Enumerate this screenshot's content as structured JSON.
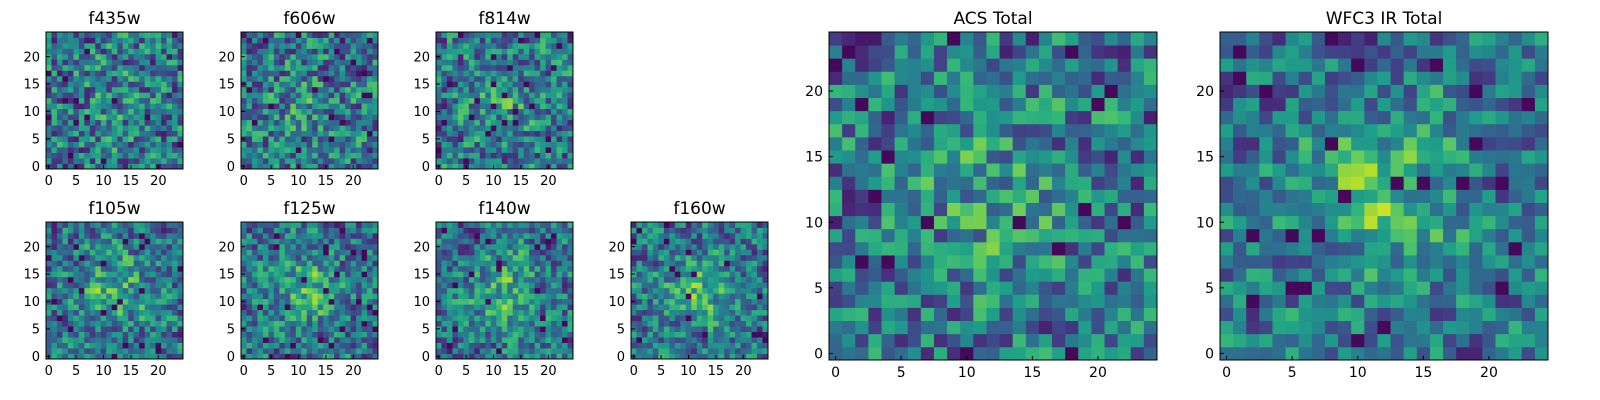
{
  "chart_data": [
    {
      "type": "heatmap",
      "title": "f435w",
      "xticks": [
        "0",
        "5",
        "10",
        "15",
        "20"
      ],
      "yticks": [
        "0",
        "5",
        "10",
        "15",
        "20"
      ],
      "xlim": [
        0,
        24
      ],
      "ylim": [
        0,
        24
      ],
      "grid": false,
      "colormap": "viridis",
      "seed": 1,
      "blob": 0.2
    },
    {
      "type": "heatmap",
      "title": "f606w",
      "xticks": [
        "0",
        "5",
        "10",
        "15",
        "20"
      ],
      "yticks": [
        "0",
        "5",
        "10",
        "15",
        "20"
      ],
      "xlim": [
        0,
        24
      ],
      "ylim": [
        0,
        24
      ],
      "grid": false,
      "colormap": "viridis",
      "seed": 2,
      "blob": 0.3
    },
    {
      "type": "heatmap",
      "title": "f814w",
      "xticks": [
        "0",
        "5",
        "10",
        "15",
        "20"
      ],
      "yticks": [
        "0",
        "5",
        "10",
        "15",
        "20"
      ],
      "xlim": [
        0,
        24
      ],
      "ylim": [
        0,
        24
      ],
      "grid": false,
      "colormap": "viridis",
      "seed": 3,
      "blob": 0.35
    },
    {
      "type": "heatmap",
      "title": "f105w",
      "xticks": [
        "0",
        "5",
        "10",
        "15",
        "20"
      ],
      "yticks": [
        "0",
        "5",
        "10",
        "15",
        "20"
      ],
      "xlim": [
        0,
        24
      ],
      "ylim": [
        0,
        24
      ],
      "grid": false,
      "colormap": "viridis",
      "seed": 4,
      "blob": 0.55
    },
    {
      "type": "heatmap",
      "title": "f125w",
      "xticks": [
        "0",
        "5",
        "10",
        "15",
        "20"
      ],
      "yticks": [
        "0",
        "5",
        "10",
        "15",
        "20"
      ],
      "xlim": [
        0,
        24
      ],
      "ylim": [
        0,
        24
      ],
      "grid": false,
      "colormap": "viridis",
      "seed": 5,
      "blob": 0.55
    },
    {
      "type": "heatmap",
      "title": "f140w",
      "xticks": [
        "0",
        "5",
        "10",
        "15",
        "20"
      ],
      "yticks": [
        "0",
        "5",
        "10",
        "15",
        "20"
      ],
      "xlim": [
        0,
        24
      ],
      "ylim": [
        0,
        24
      ],
      "grid": false,
      "colormap": "viridis",
      "seed": 6,
      "blob": 0.55
    },
    {
      "type": "heatmap",
      "title": "f160w",
      "xticks": [
        "0",
        "5",
        "10",
        "15",
        "20"
      ],
      "yticks": [
        "0",
        "5",
        "10",
        "15",
        "20"
      ],
      "xlim": [
        0,
        24
      ],
      "ylim": [
        0,
        24
      ],
      "grid": false,
      "colormap": "viridis",
      "seed": 7,
      "blob": 0.6
    },
    {
      "type": "heatmap",
      "title": "ACS Total",
      "xticks": [
        "0",
        "5",
        "10",
        "15",
        "20"
      ],
      "yticks": [
        "0",
        "5",
        "10",
        "15",
        "20"
      ],
      "xlim": [
        0,
        24
      ],
      "ylim": [
        0,
        24
      ],
      "grid": false,
      "colormap": "viridis",
      "seed": 8,
      "blob": 0.35
    },
    {
      "type": "heatmap",
      "title": "WFC3 IR Total",
      "xticks": [
        "0",
        "5",
        "10",
        "15",
        "20"
      ],
      "yticks": [
        "0",
        "5",
        "10",
        "15",
        "20"
      ],
      "xlim": [
        0,
        24
      ],
      "ylim": [
        0,
        24
      ],
      "grid": false,
      "colormap": "viridis",
      "seed": 9,
      "blob": 0.65
    }
  ]
}
